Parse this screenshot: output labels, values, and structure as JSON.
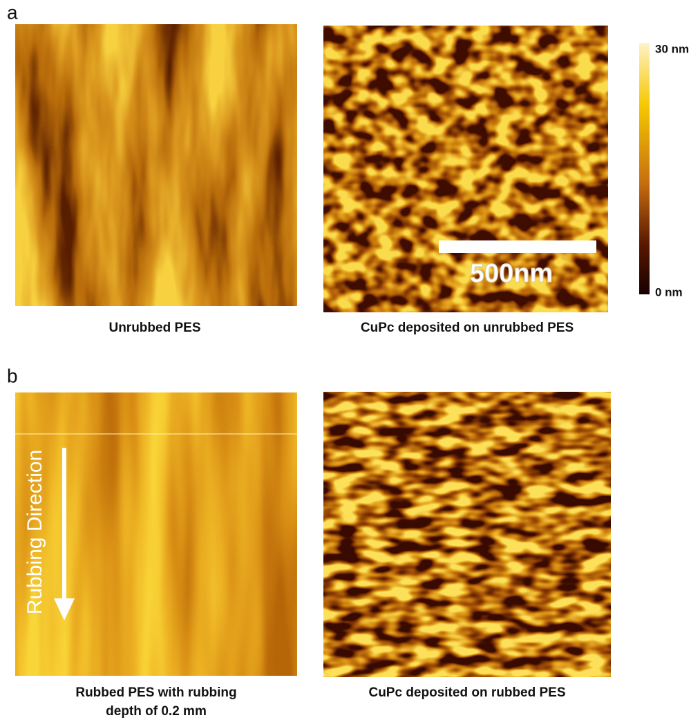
{
  "panels": [
    {
      "label": "a",
      "images": [
        {
          "caption": "Unrubbed PES"
        },
        {
          "caption": "CuPc deposited on unrubbed PES",
          "scale_bar": "500nm"
        }
      ]
    },
    {
      "label": "b",
      "images": [
        {
          "caption_lines": [
            "Rubbed PES with rubbing",
            "depth of 0.2 mm"
          ],
          "annotation": "Rubbing Direction"
        },
        {
          "caption": "CuPc deposited on rubbed PES"
        }
      ]
    }
  ],
  "colorbar": {
    "max_label": "30 nm",
    "min_label": "0 nm"
  }
}
